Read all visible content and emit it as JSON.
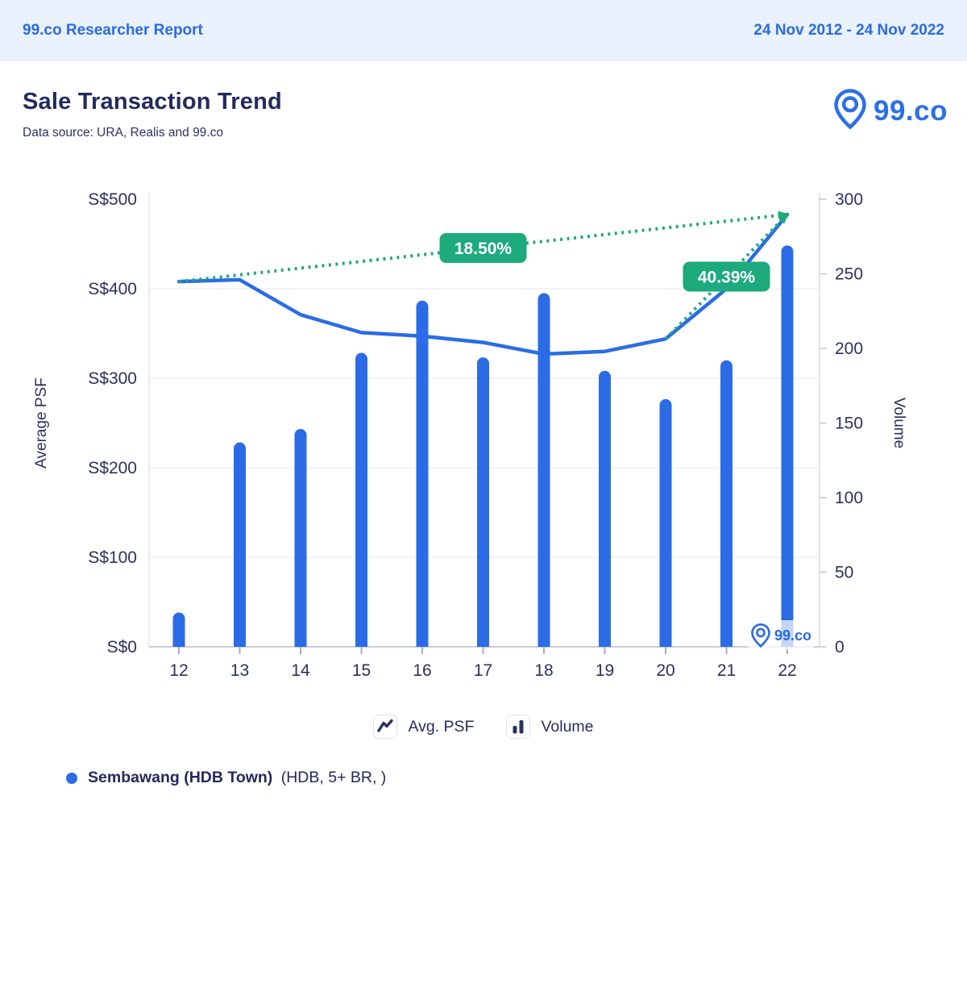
{
  "header": {
    "report_title": "99.co Researcher Report",
    "date_range": "24 Nov 2012 - 24 Nov 2022"
  },
  "page": {
    "title": "Sale Transaction Trend",
    "subtitle": "Data source: URA, Realis and 99.co"
  },
  "brand": {
    "logo_text": "99.co"
  },
  "colors": {
    "accent_blue": "#2b6ce6",
    "navy": "#252c5e",
    "green": "#1daa7d",
    "header_bg": "#e9f1fc",
    "header_text": "#2a6be2",
    "grid": "#eff0f6",
    "axis_line": "#cdd2dd",
    "tick_text": "#2b3160",
    "watermark_blue": "#2a6be2"
  },
  "chart_data": {
    "type": "combo",
    "title": "Sale Transaction Trend",
    "categories": [
      "12",
      "13",
      "14",
      "15",
      "16",
      "17",
      "18",
      "19",
      "20",
      "21",
      "22"
    ],
    "series": [
      {
        "name": "Avg. PSF",
        "type": "line",
        "axis": "left",
        "color": "#2b6ce6",
        "values": [
          408,
          410,
          371,
          351,
          347,
          340,
          327,
          330,
          344,
          400,
          483
        ]
      },
      {
        "name": "Volume",
        "type": "bar",
        "axis": "right",
        "color": "#2b6ce6",
        "values": [
          23,
          137,
          146,
          197,
          232,
          194,
          237,
          185,
          166,
          192,
          269
        ]
      }
    ],
    "left_axis": {
      "title": "Average PSF",
      "min": 0,
      "max": 500,
      "tick_labels": [
        "S$0",
        "S$100",
        "S$200",
        "S$300",
        "S$400",
        "S$500"
      ]
    },
    "right_axis": {
      "title": "Volume",
      "min": 0,
      "max": 300,
      "tick_labels": [
        "0",
        "50",
        "100",
        "150",
        "200",
        "250",
        "300"
      ]
    },
    "annotations": [
      {
        "label": "18.50%",
        "from_category": "12",
        "from_value": 408,
        "to_category": "22",
        "to_value": 483,
        "arrowhead": true
      },
      {
        "label": "40.39%",
        "from_category": "20",
        "from_value": 344,
        "to_category": "22",
        "to_value": 483,
        "arrowhead": true
      }
    ],
    "legend": [
      {
        "label": "Avg. PSF",
        "icon": "line-chart-icon"
      },
      {
        "label": "Volume",
        "icon": "bar-chart-icon"
      }
    ],
    "series_label": {
      "bold": "Sembawang (HDB Town)",
      "normal": "(HDB, 5+ BR, )"
    },
    "watermark": "99.co",
    "grid": "horizontal",
    "legend_position": "bottom"
  }
}
